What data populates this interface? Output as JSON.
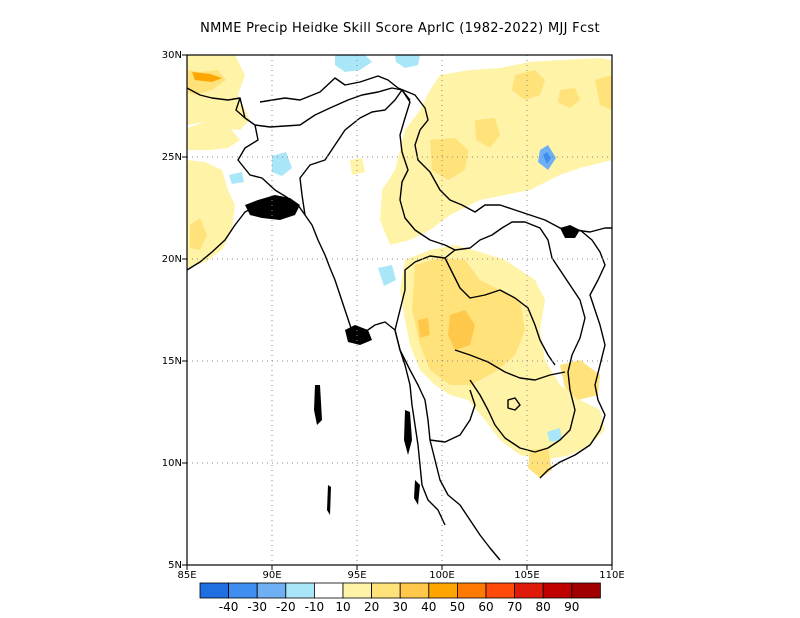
{
  "title": "NMME Precip Heidke Skill Score AprIC (1982-2022) MJJ Fcst",
  "map": {
    "lon_range": [
      85,
      110
    ],
    "lat_range": [
      5,
      30
    ],
    "lon_ticks": [
      "85E",
      "90E",
      "95E",
      "100E",
      "105E",
      "110E"
    ],
    "lat_ticks": [
      "5N",
      "10N",
      "15N",
      "20N",
      "25N",
      "30N"
    ],
    "gridlines": "dotted"
  },
  "colorbar": {
    "labels": [
      "-40",
      "-30",
      "-20",
      "-10",
      "10",
      "20",
      "30",
      "40",
      "50",
      "60",
      "70",
      "80",
      "90"
    ],
    "colors": [
      "#1f6fe0",
      "#3d8ef0",
      "#6fb0f5",
      "#a8e6f8",
      "#ffffff",
      "#fff3a8",
      "#ffe27a",
      "#ffc84a",
      "#ffa500",
      "#ff7a00",
      "#ff4a0a",
      "#e01a0a",
      "#c00000",
      "#a00000"
    ]
  }
}
